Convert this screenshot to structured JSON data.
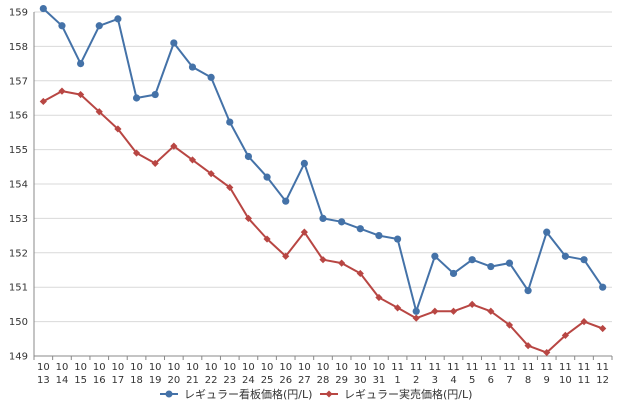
{
  "chart_data": {
    "type": "line",
    "title": "",
    "xlabel": "",
    "ylabel": "",
    "ylim": [
      149,
      159
    ],
    "yticks": [
      149,
      150,
      151,
      152,
      153,
      154,
      155,
      156,
      157,
      158,
      159
    ],
    "grid": true,
    "legend_position": "bottom",
    "categories": [
      {
        "top": "10",
        "bottom": "13"
      },
      {
        "top": "10",
        "bottom": "14"
      },
      {
        "top": "10",
        "bottom": "15"
      },
      {
        "top": "10",
        "bottom": "16"
      },
      {
        "top": "10",
        "bottom": "17"
      },
      {
        "top": "10",
        "bottom": "18"
      },
      {
        "top": "10",
        "bottom": "19"
      },
      {
        "top": "10",
        "bottom": "20"
      },
      {
        "top": "10",
        "bottom": "21"
      },
      {
        "top": "10",
        "bottom": "22"
      },
      {
        "top": "10",
        "bottom": "23"
      },
      {
        "top": "10",
        "bottom": "24"
      },
      {
        "top": "10",
        "bottom": "25"
      },
      {
        "top": "10",
        "bottom": "26"
      },
      {
        "top": "10",
        "bottom": "27"
      },
      {
        "top": "10",
        "bottom": "28"
      },
      {
        "top": "10",
        "bottom": "29"
      },
      {
        "top": "10",
        "bottom": "30"
      },
      {
        "top": "10",
        "bottom": "31"
      },
      {
        "top": "11",
        "bottom": "1"
      },
      {
        "top": "11",
        "bottom": "2"
      },
      {
        "top": "11",
        "bottom": "3"
      },
      {
        "top": "11",
        "bottom": "4"
      },
      {
        "top": "11",
        "bottom": "5"
      },
      {
        "top": "11",
        "bottom": "6"
      },
      {
        "top": "11",
        "bottom": "7"
      },
      {
        "top": "11",
        "bottom": "8"
      },
      {
        "top": "11",
        "bottom": "9"
      },
      {
        "top": "11",
        "bottom": "10"
      },
      {
        "top": "11",
        "bottom": "11"
      },
      {
        "top": "11",
        "bottom": "12"
      }
    ],
    "series": [
      {
        "name": "レギュラー看板価格(円/L)",
        "color": "#4472a8",
        "marker": "circle",
        "values": [
          159.1,
          158.6,
          157.5,
          158.6,
          158.8,
          156.5,
          156.6,
          158.1,
          157.4,
          157.1,
          155.8,
          154.8,
          154.2,
          153.5,
          154.6,
          153.0,
          152.9,
          152.7,
          152.5,
          152.4,
          150.3,
          151.9,
          151.4,
          151.8,
          151.6,
          151.7,
          150.9,
          152.6,
          151.9,
          151.8,
          151.0
        ]
      },
      {
        "name": "レギュラー実売価格(円/L)",
        "color": "#b84643",
        "marker": "diamond",
        "values": [
          156.4,
          156.7,
          156.6,
          156.1,
          155.6,
          154.9,
          154.6,
          155.1,
          154.7,
          154.3,
          153.9,
          153.0,
          152.4,
          151.9,
          152.6,
          151.8,
          151.7,
          151.4,
          150.7,
          150.4,
          150.1,
          150.3,
          150.3,
          150.5,
          150.3,
          149.9,
          149.3,
          149.1,
          149.6,
          150.0,
          149.8
        ]
      }
    ]
  }
}
